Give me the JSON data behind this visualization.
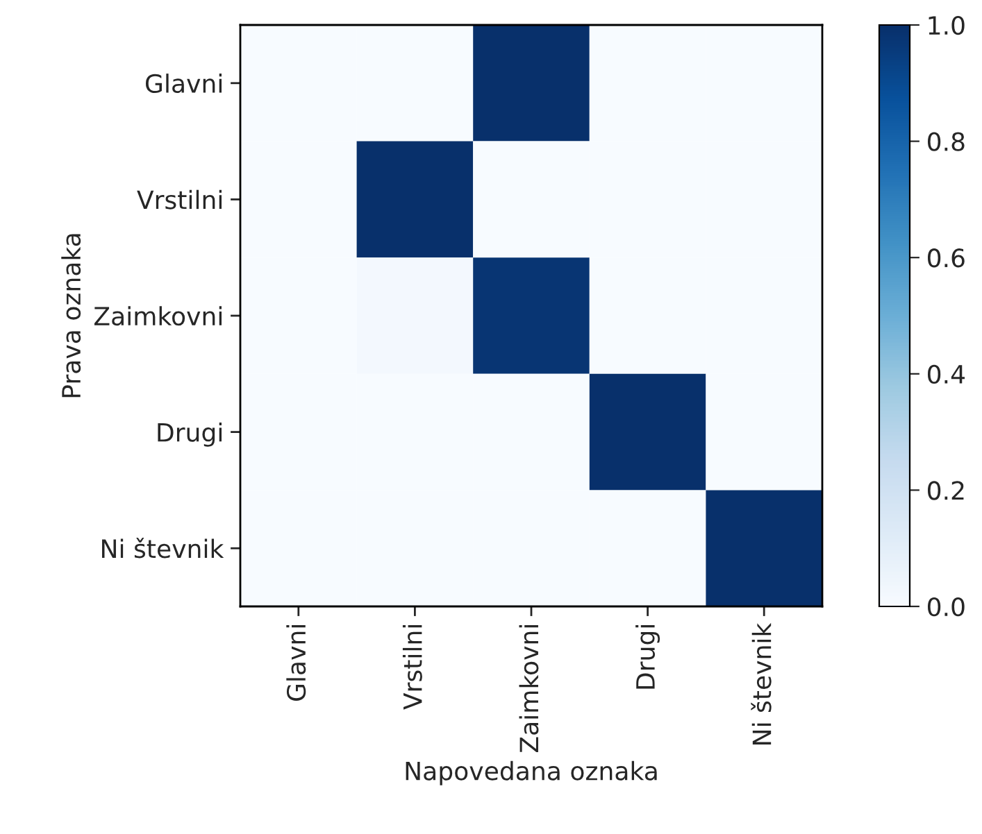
{
  "chart_data": {
    "type": "heatmap",
    "xlabel": "Napovedana oznaka",
    "ylabel": "Prava oznaka",
    "categories": [
      "Glavni",
      "Vrstilni",
      "Zaimkovni",
      "Drugi",
      "Ni števnik"
    ],
    "y_categories": [
      "Glavni",
      "Vrstilni",
      "Zaimkovni",
      "Drugi",
      "Ni števnik"
    ],
    "cells": [
      [
        0,
        0,
        1,
        0,
        0
      ],
      [
        0,
        1,
        0,
        0,
        0
      ],
      [
        0,
        0.02,
        0.98,
        0,
        0
      ],
      [
        0,
        0,
        0,
        1,
        0
      ],
      [
        0,
        0,
        0,
        0,
        1
      ]
    ],
    "clim": [
      0,
      1
    ],
    "cticks": [
      {
        "value": 0,
        "label": "0.0"
      },
      {
        "value": 0.2,
        "label": "0.2"
      },
      {
        "value": 0.4,
        "label": "0.4"
      },
      {
        "value": 0.6,
        "label": "0.6"
      },
      {
        "value": 0.8,
        "label": "0.8"
      },
      {
        "value": 1,
        "label": "1.0"
      }
    ]
  }
}
